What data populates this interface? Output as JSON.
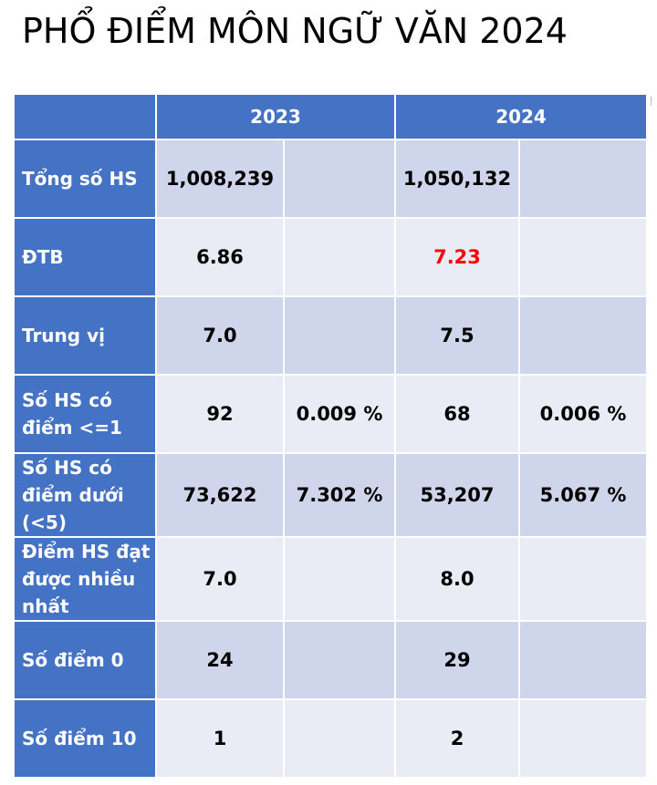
{
  "title": "PHỔ ĐIỂM MÔN NGỮ VĂN 2024",
  "table": {
    "years": [
      "2023",
      "2024"
    ],
    "rows": [
      {
        "label": "Tổng số HS",
        "y2023_value": "1,008,239",
        "y2023_pct": "",
        "y2024_value": "1,050,132",
        "y2024_pct": ""
      },
      {
        "label": "ĐTB",
        "y2023_value": "6.86",
        "y2023_pct": "",
        "y2024_value": "7.23",
        "y2024_pct": ""
      },
      {
        "label": "Trung vị",
        "y2023_value": "7.0",
        "y2023_pct": "",
        "y2024_value": "7.5",
        "y2024_pct": ""
      },
      {
        "label": "Số HS có điểm <=1",
        "y2023_value": "92",
        "y2023_pct": "0.009 %",
        "y2024_value": "68",
        "y2024_pct": "0.006 %"
      },
      {
        "label": "Số HS có điểm dưới (<5)",
        "y2023_value": "73,622",
        "y2023_pct": "7.302 %",
        "y2024_value": "53,207",
        "y2024_pct": "5.067 %"
      },
      {
        "label": "Điểm HS đạt được nhiều nhất",
        "y2023_value": "7.0",
        "y2023_pct": "",
        "y2024_value": "8.0",
        "y2024_pct": ""
      },
      {
        "label": "Số điểm 0",
        "y2023_value": "24",
        "y2023_pct": "",
        "y2024_value": "29",
        "y2024_pct": ""
      },
      {
        "label": "Số điểm 10",
        "y2023_value": "1",
        "y2023_pct": "",
        "y2024_value": "2",
        "y2024_pct": ""
      }
    ]
  },
  "colors": {
    "header_blue": "#4472c4",
    "cell_dark": "#cfd5ea",
    "cell_light": "#e9ebf5",
    "highlight_red": "#ff0000"
  }
}
